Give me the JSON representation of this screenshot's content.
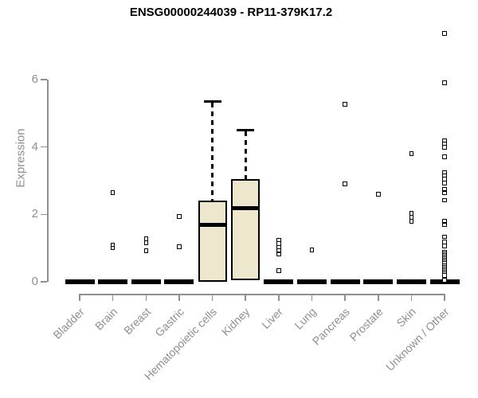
{
  "window": {
    "title": "ENSG00000244039 - RP11-379K17.2"
  },
  "colors": {
    "box_fill": "#EDE7CE",
    "box_border": "#000000",
    "median": "#000000",
    "axis": "#8f8f8f",
    "tick_text": "#8f8f8f",
    "title_text": "#000000",
    "outlier_fill": "#ffffff",
    "outlier_border": "#000000"
  },
  "chart_data": {
    "type": "boxplot",
    "title": "ENSG00000244039 - RP11-379K17.2",
    "xlabel": "",
    "ylabel": "Expression",
    "ylim": [
      0,
      7.5
    ],
    "yticks": [
      0,
      2,
      4,
      6
    ],
    "grid": false,
    "x_label_rotation": 45,
    "categories": [
      "Bladder",
      "Brain",
      "Breast",
      "Gastric",
      "Hematopoietic cells",
      "Kidney",
      "Liver",
      "Lung",
      "Pancreas",
      "Prostate",
      "Skin",
      "Unknown / Other"
    ],
    "boxes": [
      {
        "category": "Bladder",
        "whisker_low": 0,
        "q1": 0,
        "median": 0,
        "q3": 0,
        "whisker_high": 0,
        "outliers": []
      },
      {
        "category": "Brain",
        "whisker_low": 0,
        "q1": 0,
        "median": 0,
        "q3": 0,
        "whisker_high": 0,
        "outliers": [
          2.64,
          1.1,
          1.0
        ]
      },
      {
        "category": "Breast",
        "whisker_low": 0,
        "q1": 0,
        "median": 0,
        "q3": 0,
        "whisker_high": 0,
        "outliers": [
          1.28,
          1.16,
          0.92
        ]
      },
      {
        "category": "Gastric",
        "whisker_low": 0,
        "q1": 0,
        "median": 0,
        "q3": 0,
        "whisker_high": 0,
        "outliers": [
          1.94,
          1.04
        ]
      },
      {
        "category": "Hematopoietic cells",
        "whisker_low": 0,
        "q1": 0,
        "median": 1.68,
        "q3": 2.42,
        "whisker_high": 5.36,
        "outliers": []
      },
      {
        "category": "Kidney",
        "whisker_low": 0.05,
        "q1": 0.05,
        "median": 2.19,
        "q3": 3.05,
        "whisker_high": 4.51,
        "outliers": []
      },
      {
        "category": "Liver",
        "whisker_low": 0,
        "q1": 0,
        "median": 0,
        "q3": 0,
        "whisker_high": 0,
        "outliers": [
          1.23,
          1.13,
          1.03,
          0.93,
          0.82,
          0.33
        ]
      },
      {
        "category": "Lung",
        "whisker_low": 0,
        "q1": 0,
        "median": 0,
        "q3": 0,
        "whisker_high": 0,
        "outliers": [
          0.94
        ]
      },
      {
        "category": "Pancreas",
        "whisker_low": 0,
        "q1": 0,
        "median": 0,
        "q3": 0,
        "whisker_high": 0,
        "outliers": [
          5.27,
          2.91
        ]
      },
      {
        "category": "Prostate",
        "whisker_low": 0,
        "q1": 0,
        "median": 0,
        "q3": 0,
        "whisker_high": 0,
        "outliers": [
          2.6
        ]
      },
      {
        "category": "Skin",
        "whisker_low": 0,
        "q1": 0,
        "median": 0,
        "q3": 0,
        "whisker_high": 0,
        "outliers": [
          3.8,
          2.03,
          1.91,
          1.8
        ]
      },
      {
        "category": "Unknown / Other",
        "whisker_low": 0,
        "q1": 0,
        "median": 0,
        "q3": 0,
        "whisker_high": 0,
        "outliers": [
          7.37,
          5.91,
          4.18,
          4.09,
          3.99,
          3.71,
          3.25,
          3.15,
          3.05,
          2.93,
          2.75,
          2.63,
          2.42,
          1.81,
          1.69,
          1.34,
          1.18,
          1.06,
          0.89,
          0.84,
          0.79,
          0.74,
          0.69,
          0.64,
          0.59,
          0.54,
          0.49,
          0.44,
          0.39,
          0.34,
          0.29,
          0.24,
          0.19,
          0.05
        ]
      }
    ]
  }
}
